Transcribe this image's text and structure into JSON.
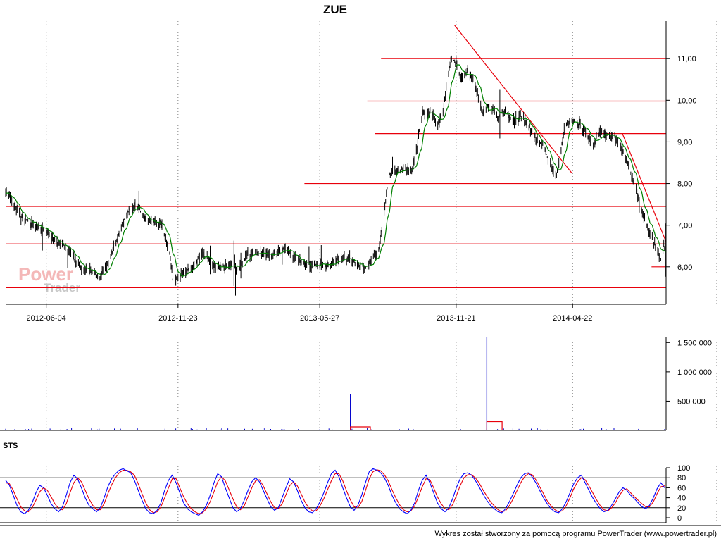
{
  "title": "ZUE",
  "footer": "Wykres został stworzony za pomocą programu PowerTrader (www.powertrader.pl)",
  "logo": {
    "word1": "Power",
    "word2": "Trader"
  },
  "colors": {
    "price": "#000000",
    "moving_average": "#008000",
    "lines": "#e8000b",
    "volume": "#0000cc",
    "volume_avg": "#e8000b",
    "sts_k": "#0000ff",
    "sts_d": "#e8000b",
    "grid": "#808080"
  },
  "chart_data": [
    {
      "type": "line",
      "panel": "price",
      "title": "ZUE",
      "x_ticks": [
        "2012-06-04",
        "2012-11-23",
        "2013-05-27",
        "2013-11-21",
        "2014-04-22"
      ],
      "y_ticks": [
        "6,00",
        "7,00",
        "8,00",
        "9,00",
        "10,00",
        "11,00"
      ],
      "y_tick_values": [
        6,
        7,
        8,
        9,
        10,
        11
      ],
      "ylim": [
        5.1,
        11.9
      ],
      "date_range": [
        "2012-04-12",
        "2014-08-22"
      ],
      "price_path": [
        [
          "2012-04-12",
          7.85
        ],
        [
          "2012-04-22",
          7.5
        ],
        [
          "2012-05-02",
          7.2
        ],
        [
          "2012-05-12",
          7.1
        ],
        [
          "2012-05-22",
          6.95
        ],
        [
          "2012-06-04",
          6.9
        ],
        [
          "2012-06-15",
          6.6
        ],
        [
          "2012-06-25",
          6.55
        ],
        [
          "2012-07-05",
          6.35
        ],
        [
          "2012-07-15",
          6.05
        ],
        [
          "2012-07-25",
          5.95
        ],
        [
          "2012-08-04",
          5.85
        ],
        [
          "2012-08-14",
          5.75
        ],
        [
          "2012-08-24",
          6.1
        ],
        [
          "2012-09-03",
          6.6
        ],
        [
          "2012-09-13",
          7.1
        ],
        [
          "2012-09-23",
          7.45
        ],
        [
          "2012-10-03",
          7.4
        ],
        [
          "2012-10-13",
          7.1
        ],
        [
          "2012-10-23",
          7.1
        ],
        [
          "2012-11-02",
          7.0
        ],
        [
          "2012-11-12",
          6.3
        ],
        [
          "2012-11-16",
          5.7
        ],
        [
          "2012-11-23",
          5.75
        ],
        [
          "2012-12-03",
          5.9
        ],
        [
          "2012-12-13",
          6.0
        ],
        [
          "2012-12-23",
          6.3
        ],
        [
          "2013-01-02",
          6.2
        ],
        [
          "2013-01-12",
          5.95
        ],
        [
          "2013-01-22",
          6.0
        ],
        [
          "2013-02-01",
          6.05
        ],
        [
          "2013-02-11",
          5.95
        ],
        [
          "2013-02-21",
          6.3
        ],
        [
          "2013-03-03",
          6.3
        ],
        [
          "2013-03-13",
          6.35
        ],
        [
          "2013-03-23",
          6.3
        ],
        [
          "2013-04-02",
          6.35
        ],
        [
          "2013-04-12",
          6.45
        ],
        [
          "2013-04-22",
          6.25
        ],
        [
          "2013-05-02",
          6.1
        ],
        [
          "2013-05-12",
          6.05
        ],
        [
          "2013-05-27",
          6.05
        ],
        [
          "2013-06-06",
          6.0
        ],
        [
          "2013-06-16",
          6.15
        ],
        [
          "2013-06-26",
          6.2
        ],
        [
          "2013-07-06",
          6.2
        ],
        [
          "2013-07-16",
          6.05
        ],
        [
          "2013-07-26",
          6.0
        ],
        [
          "2013-08-05",
          6.2
        ],
        [
          "2013-08-12",
          6.4
        ],
        [
          "2013-08-19",
          7.3
        ],
        [
          "2013-08-25",
          8.2
        ],
        [
          "2013-09-04",
          8.3
        ],
        [
          "2013-09-14",
          8.35
        ],
        [
          "2013-09-24",
          8.3
        ],
        [
          "2013-10-01",
          8.9
        ],
        [
          "2013-10-08",
          9.7
        ],
        [
          "2013-10-18",
          9.7
        ],
        [
          "2013-10-28",
          9.45
        ],
        [
          "2013-11-03",
          9.6
        ],
        [
          "2013-11-08",
          10.3
        ],
        [
          "2013-11-14",
          11.0
        ],
        [
          "2013-11-21",
          10.9
        ],
        [
          "2013-11-28",
          10.5
        ],
        [
          "2013-12-05",
          10.7
        ],
        [
          "2013-12-15",
          10.4
        ],
        [
          "2013-12-25",
          9.7
        ],
        [
          "2014-01-04",
          9.9
        ],
        [
          "2014-01-14",
          9.6
        ],
        [
          "2014-01-24",
          9.75
        ],
        [
          "2014-02-03",
          9.5
        ],
        [
          "2014-02-13",
          9.6
        ],
        [
          "2014-02-23",
          9.4
        ],
        [
          "2014-03-05",
          9.1
        ],
        [
          "2014-03-15",
          8.9
        ],
        [
          "2014-03-25",
          8.4
        ],
        [
          "2014-04-01",
          8.2
        ],
        [
          "2014-04-06",
          8.7
        ],
        [
          "2014-04-12",
          9.4
        ],
        [
          "2014-04-22",
          9.5
        ],
        [
          "2014-05-02",
          9.4
        ],
        [
          "2014-05-10",
          9.2
        ],
        [
          "2014-05-17",
          8.9
        ],
        [
          "2014-05-27",
          9.2
        ],
        [
          "2014-06-06",
          9.15
        ],
        [
          "2014-06-16",
          9.1
        ],
        [
          "2014-06-26",
          8.8
        ],
        [
          "2014-07-06",
          8.3
        ],
        [
          "2014-07-13",
          7.9
        ],
        [
          "2014-07-20",
          7.4
        ],
        [
          "2014-07-27",
          7.0
        ],
        [
          "2014-08-03",
          6.7
        ],
        [
          "2014-08-10",
          6.4
        ],
        [
          "2014-08-15",
          6.2
        ],
        [
          "2014-08-19",
          6.5
        ],
        [
          "2014-08-22",
          6.35
        ]
      ],
      "horizontal_lines": [
        {
          "y": 11.0,
          "from": "2013-08-15",
          "to": "2014-08-22"
        },
        {
          "y": 9.98,
          "from": "2013-07-28",
          "to": "2014-08-22"
        },
        {
          "y": 9.2,
          "from": "2013-08-07",
          "to": "2014-08-22"
        },
        {
          "y": 8.0,
          "from": "2013-05-07",
          "to": "2014-08-22"
        },
        {
          "y": 7.45,
          "from": "2012-04-12",
          "to": "2014-08-22"
        },
        {
          "y": 6.55,
          "from": "2012-04-12",
          "to": "2014-08-22"
        },
        {
          "y": 6.0,
          "from": "2014-08-03",
          "to": "2014-08-22"
        },
        {
          "y": 5.5,
          "from": "2012-04-12",
          "to": "2014-08-22"
        }
      ],
      "trend_lines": [
        {
          "from": [
            "2013-11-19",
            11.8
          ],
          "to": [
            "2014-04-21",
            8.25
          ]
        },
        {
          "from": [
            "2014-06-26",
            9.2
          ],
          "to": [
            "2014-08-22",
            6.6
          ]
        }
      ]
    },
    {
      "type": "bar",
      "panel": "volume",
      "y_ticks": [
        "500 000",
        "1 000 000",
        "1 500 000"
      ],
      "y_tick_values": [
        500000,
        1000000,
        1500000
      ],
      "ylim": [
        0,
        1600000
      ],
      "spikes": [
        {
          "x": "2013-07-06",
          "value": 620000
        },
        {
          "x": "2013-12-31",
          "value": 1600000
        }
      ],
      "avg_steps": [
        {
          "from": "2013-07-06",
          "to": "2013-08-01",
          "value": 60000
        },
        {
          "from": "2013-12-31",
          "to": "2014-01-20",
          "value": 150000
        }
      ]
    },
    {
      "type": "line",
      "panel": "STS",
      "title": "STS",
      "y_ticks": [
        "0",
        "20",
        "40",
        "60",
        "80",
        "100"
      ],
      "y_tick_values": [
        0,
        20,
        40,
        60,
        80,
        100
      ],
      "ylim": [
        0,
        100
      ],
      "levels": [
        20,
        80
      ],
      "k_values": [
        75,
        65,
        45,
        25,
        12,
        8,
        15,
        30,
        50,
        65,
        60,
        45,
        28,
        18,
        12,
        22,
        45,
        70,
        85,
        78,
        60,
        40,
        25,
        18,
        12,
        20,
        40,
        62,
        78,
        88,
        95,
        98,
        94,
        90,
        75,
        55,
        35,
        18,
        10,
        8,
        15,
        30,
        55,
        75,
        85,
        70,
        50,
        30,
        18,
        12,
        8,
        5,
        12,
        25,
        45,
        70,
        88,
        82,
        60,
        40,
        20,
        12,
        18,
        35,
        55,
        72,
        80,
        72,
        55,
        38,
        22,
        15,
        20,
        40,
        60,
        78,
        72,
        55,
        35,
        20,
        12,
        10,
        18,
        32,
        50,
        70,
        88,
        95,
        82,
        60,
        40,
        22,
        15,
        25,
        45,
        70,
        92,
        98,
        95,
        90,
        80,
        65,
        45,
        30,
        18,
        12,
        8,
        15,
        30,
        55,
        75,
        85,
        70,
        50,
        30,
        18,
        12,
        20,
        38,
        60,
        78,
        88,
        90,
        85,
        75,
        62,
        48,
        35,
        25,
        18,
        12,
        10,
        18,
        32,
        48,
        65,
        80,
        88,
        90,
        82,
        70,
        55,
        40,
        28,
        18,
        12,
        10,
        18,
        32,
        50,
        68,
        80,
        85,
        70,
        55,
        40,
        28,
        18,
        12,
        15,
        25,
        38,
        52,
        60,
        55,
        45,
        38,
        30,
        22,
        18,
        25,
        40,
        58,
        70,
        60
      ],
      "d_values": [
        70,
        68,
        55,
        38,
        22,
        14,
        12,
        20,
        35,
        52,
        60,
        55,
        42,
        28,
        18,
        16,
        28,
        50,
        70,
        80,
        72,
        55,
        38,
        25,
        16,
        16,
        28,
        48,
        66,
        80,
        90,
        95,
        95,
        92,
        85,
        68,
        48,
        30,
        16,
        10,
        12,
        22,
        40,
        60,
        78,
        78,
        60,
        42,
        28,
        18,
        12,
        8,
        10,
        18,
        32,
        52,
        72,
        82,
        74,
        56,
        38,
        22,
        16,
        24,
        42,
        60,
        74,
        76,
        64,
        48,
        32,
        20,
        18,
        28,
        46,
        64,
        72,
        64,
        48,
        32,
        20,
        14,
        14,
        24,
        38,
        56,
        74,
        88,
        88,
        74,
        54,
        36,
        22,
        20,
        32,
        54,
        78,
        92,
        96,
        94,
        86,
        74,
        56,
        40,
        26,
        16,
        12,
        14,
        24,
        42,
        62,
        78,
        76,
        60,
        42,
        28,
        18,
        16,
        26,
        44,
        64,
        80,
        86,
        86,
        80,
        70,
        56,
        44,
        32,
        24,
        16,
        12,
        14,
        24,
        38,
        54,
        70,
        82,
        88,
        86,
        76,
        62,
        48,
        34,
        24,
        16,
        12,
        14,
        24,
        40,
        58,
        72,
        80,
        76,
        64,
        50,
        36,
        24,
        16,
        14,
        20,
        30,
        44,
        55,
        58,
        50,
        42,
        35,
        28,
        22,
        22,
        32,
        48,
        62,
        64
      ]
    }
  ]
}
